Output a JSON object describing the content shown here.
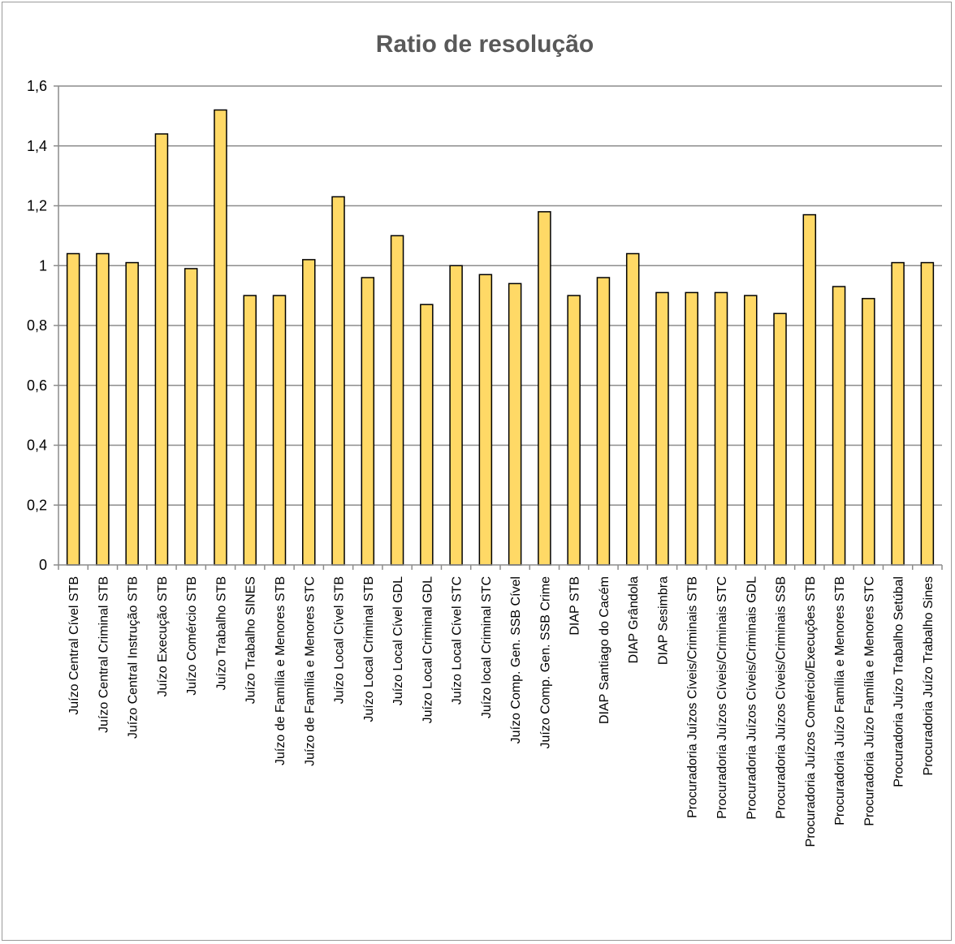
{
  "chart_data": {
    "type": "bar",
    "title": "Ratio de resolução",
    "xlabel": "",
    "ylabel": "",
    "ylim": [
      0,
      1.6
    ],
    "yticks": [
      "0",
      "0,2",
      "0,4",
      "0,6",
      "0,8",
      "1",
      "1,2",
      "1,4",
      "1,6"
    ],
    "grid": true,
    "legend": "none",
    "bar_color": "#FFD966",
    "bar_edge_color": "#000000",
    "categories": [
      "Juízo Central Cível STB",
      "Juízo Central Criminal STB",
      "Juízo Central Instrução STB",
      "Juízo Execução STB",
      "Juízo Comércio STB",
      "Juízo Trabalho STB",
      "Juízo Trabalho SINES",
      "Juízo de Família e Menores STB",
      "Juízo de Família e Menores STC",
      "Juízo Local Cível STB",
      "Juízo Local Criminal STB",
      "Juízo Local Cível GDL",
      "Juízo Local Criminal GDL",
      "Juízo Local Cível STC",
      "Juízo local Criminal STC",
      "Juízo Comp. Gen. SSB Cível",
      "Juízo Comp. Gen. SSB Crime",
      "DIAP STB",
      "DIAP Santiago do Cacém",
      "DIAP Grândola",
      "DIAP Sesimbra",
      "Procuradoria Juízos Cíveis/Criminais STB",
      "Procuradoria Juízos Cíveis/Criminais STC",
      "Procuradoria Juízos Cíveis/Criminais GDL",
      "Procuradoria Juízos Cíveis/Criminais SSB",
      "Procuradoria Juízos Comércio/Execuções STB",
      "Procuradoria Juízo Família e Menores STB",
      "Procuradoria Juízo Família e Menores STC",
      "Procuradoria Juízo Trabalho Setúbal",
      "Procuradoria Juízo Trabalho Sines"
    ],
    "values": [
      1.04,
      1.04,
      1.01,
      1.44,
      0.99,
      1.52,
      0.9,
      0.9,
      1.02,
      1.23,
      0.96,
      1.1,
      0.87,
      1.0,
      0.97,
      0.94,
      1.18,
      0.9,
      0.96,
      1.04,
      0.91,
      0.91,
      0.91,
      0.9,
      0.84,
      1.17,
      0.93,
      0.89,
      1.01,
      1.01
    ]
  }
}
